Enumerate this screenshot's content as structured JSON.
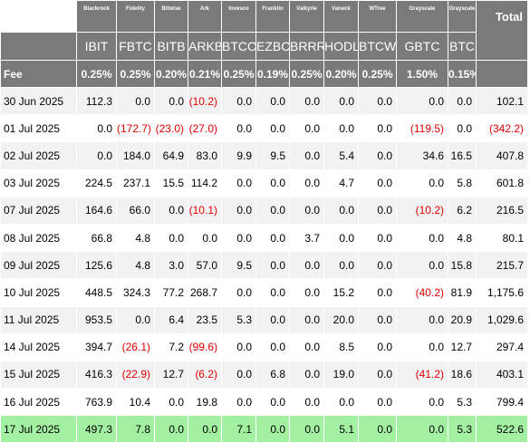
{
  "header": {
    "issuers": [
      "Blackrock",
      "Fidelity",
      "Bitwise",
      "Ark",
      "Invesco",
      "Franklin",
      "Valkyrie",
      "Vaneck",
      "WTree",
      "Grayscale",
      "Grayscale"
    ],
    "total_label": "Total",
    "tickers": [
      "IBIT",
      "FBTC",
      "BITB",
      "ARKB",
      "BTCO",
      "EZBC",
      "BRRR",
      "HODL",
      "BTCW",
      "GBTC",
      "BTC"
    ],
    "fee_label": "Fee",
    "fees": [
      "0.25%",
      "0.25%",
      "0.20%",
      "0.21%",
      "0.25%",
      "0.19%",
      "0.25%",
      "0.20%",
      "0.25%",
      "1.50%",
      "0.15%"
    ]
  },
  "rows": [
    {
      "date": "30 Jun 2025",
      "values": [
        "112.3",
        "0.0",
        "0.0",
        "(10.2)",
        "0.0",
        "0.0",
        "0.0",
        "0.0",
        "0.0",
        "0.0",
        "0.0",
        "102.1"
      ]
    },
    {
      "date": "01 Jul 2025",
      "values": [
        "0.0",
        "(172.7)",
        "(23.0)",
        "(27.0)",
        "0.0",
        "0.0",
        "0.0",
        "0.0",
        "0.0",
        "(119.5)",
        "0.0",
        "(342.2)"
      ]
    },
    {
      "date": "02 Jul 2025",
      "values": [
        "0.0",
        "184.0",
        "64.9",
        "83.0",
        "9.9",
        "9.5",
        "0.0",
        "5.4",
        "0.0",
        "34.6",
        "16.5",
        "407.8"
      ]
    },
    {
      "date": "03 Jul 2025",
      "values": [
        "224.5",
        "237.1",
        "15.5",
        "114.2",
        "0.0",
        "0.0",
        "0.0",
        "4.7",
        "0.0",
        "0.0",
        "5.8",
        "601.8"
      ]
    },
    {
      "date": "07 Jul 2025",
      "values": [
        "164.6",
        "66.0",
        "0.0",
        "(10.1)",
        "0.0",
        "0.0",
        "0.0",
        "0.0",
        "0.0",
        "(10.2)",
        "6.2",
        "216.5"
      ]
    },
    {
      "date": "08 Jul 2025",
      "values": [
        "66.8",
        "4.8",
        "0.0",
        "0.0",
        "0.0",
        "0.0",
        "3.7",
        "0.0",
        "0.0",
        "0.0",
        "4.8",
        "80.1"
      ]
    },
    {
      "date": "09 Jul 2025",
      "values": [
        "125.6",
        "4.8",
        "3.0",
        "57.0",
        "9.5",
        "0.0",
        "0.0",
        "0.0",
        "0.0",
        "0.0",
        "15.8",
        "215.7"
      ]
    },
    {
      "date": "10 Jul 2025",
      "values": [
        "448.5",
        "324.3",
        "77.2",
        "268.7",
        "0.0",
        "0.0",
        "0.0",
        "15.2",
        "0.0",
        "(40.2)",
        "81.9",
        "1,175.6"
      ]
    },
    {
      "date": "11 Jul 2025",
      "values": [
        "953.5",
        "0.0",
        "6.4",
        "23.5",
        "5.3",
        "0.0",
        "0.0",
        "20.0",
        "0.0",
        "0.0",
        "20.9",
        "1,029.6"
      ]
    },
    {
      "date": "14 Jul 2025",
      "values": [
        "394.7",
        "(26.1)",
        "7.2",
        "(99.6)",
        "0.0",
        "0.0",
        "0.0",
        "8.5",
        "0.0",
        "0.0",
        "12.7",
        "297.4"
      ]
    },
    {
      "date": "15 Jul 2025",
      "values": [
        "416.3",
        "(22.9)",
        "12.7",
        "(6.2)",
        "0.0",
        "6.8",
        "0.0",
        "19.0",
        "0.0",
        "(41.2)",
        "18.6",
        "403.1"
      ]
    },
    {
      "date": "16 Jul 2025",
      "values": [
        "763.9",
        "10.4",
        "0.0",
        "19.8",
        "0.0",
        "0.0",
        "0.0",
        "0.0",
        "0.0",
        "0.0",
        "5.3",
        "799.4"
      ]
    },
    {
      "date": "17 Jul 2025",
      "values": [
        "497.3",
        "7.8",
        "0.0",
        "0.0",
        "7.1",
        "0.0",
        "0.0",
        "5.1",
        "0.0",
        "0.0",
        "5.3",
        "522.6"
      ]
    }
  ],
  "colors": {
    "header_bg": "#7a7a7a",
    "negative": "#e00000",
    "latest_row_bg": "#a3f0a3",
    "stripe_bg": "#f2f2f2"
  }
}
